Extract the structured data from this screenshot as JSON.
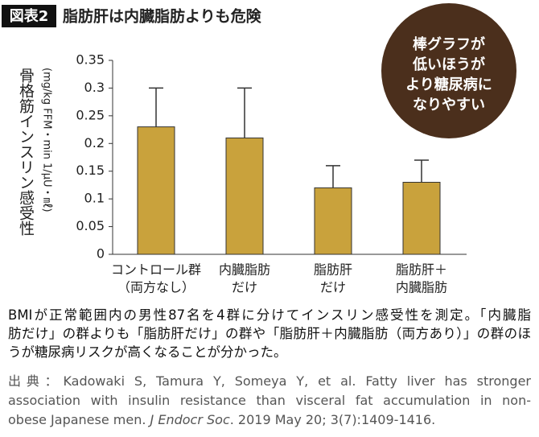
{
  "header": {
    "badge": "図表2",
    "title": "脂肪肝は内臓脂肪よりも危険"
  },
  "chart_data": {
    "type": "bar",
    "y_label": "骨格筋インスリン感受性",
    "y_unit": "(mg/kg FFM・min 1/μU・㎖)",
    "categories": [
      [
        "コントロール群",
        "（両方なし）"
      ],
      [
        "内臓脂肪",
        "だけ"
      ],
      [
        "脂肪肝",
        "だけ"
      ],
      [
        "脂肪肝＋",
        "内臓脂肪"
      ]
    ],
    "values": [
      0.23,
      0.21,
      0.12,
      0.13
    ],
    "errors": [
      0.07,
      0.09,
      0.04,
      0.04
    ],
    "color": "#c9a23c",
    "ylim": [
      0,
      0.35
    ],
    "yticks": [
      0,
      0.05,
      0.1,
      0.15,
      0.2,
      0.25,
      0.3,
      0.35
    ],
    "annotation": [
      "棒グラフが",
      "低いほうが",
      "より糖尿病に",
      "なりやすい"
    ]
  },
  "caption": [
    "BMIが正常範囲内の男性87名を4群に分けてインスリン感受性を測定。「内臓脂",
    "肪だけ」の群よりも「脂肪肝だけ」の群や「脂肪肝＋内臓脂肪（両方あり）」の群のほ",
    "うが糖尿病リスクが高くなることが分かった。"
  ],
  "citation": {
    "lines": [
      "出典：Kadowaki S, Tamura Y, Someya Y, et al. Fatty liver has stronger",
      "association with insulin resistance than visceral fat accumulation in non-"
    ],
    "last": "obese Japanese men. ",
    "journal": "J Endocr Soc",
    "rest": ". 2019 May 20; 3(7):1409-1416."
  }
}
